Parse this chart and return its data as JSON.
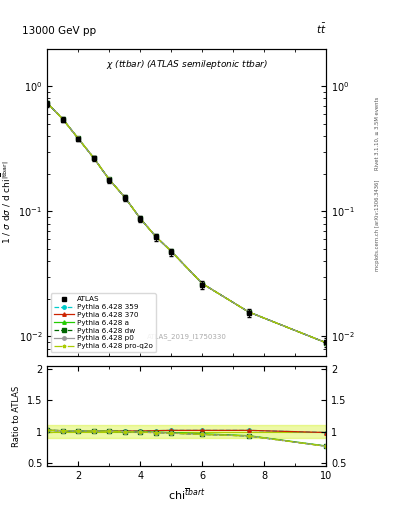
{
  "title_top": "13000 GeV pp",
  "title_right": "tt",
  "plot_title": "χ (ttbar) (ATLAS semileptonic ttbar)",
  "watermark": "ATLAS_2019_I1750330",
  "right_label_top": "Rivet 3.1.10, ≥ 3.5M events",
  "right_label_bot": "mcplots.cern.ch [arXiv:1306.3436]",
  "chi_centers": [
    1.0,
    1.5,
    2.0,
    2.5,
    3.0,
    3.5,
    4.0,
    4.5,
    5.0,
    6.0,
    7.5,
    10.0
  ],
  "ATLAS_y": [
    0.72,
    0.54,
    0.38,
    0.265,
    0.178,
    0.128,
    0.087,
    0.062,
    0.047,
    0.026,
    0.0155,
    0.009
  ],
  "ATLAS_yerr": [
    0.04,
    0.025,
    0.015,
    0.01,
    0.008,
    0.006,
    0.005,
    0.004,
    0.003,
    0.002,
    0.0012,
    0.0008
  ],
  "py359_y": [
    0.735,
    0.548,
    0.383,
    0.268,
    0.18,
    0.13,
    0.088,
    0.063,
    0.048,
    0.0265,
    0.0157,
    0.0089
  ],
  "py370_y": [
    0.735,
    0.548,
    0.383,
    0.268,
    0.18,
    0.13,
    0.088,
    0.063,
    0.048,
    0.0265,
    0.0157,
    0.0089
  ],
  "pya_y": [
    0.735,
    0.548,
    0.383,
    0.268,
    0.18,
    0.13,
    0.088,
    0.063,
    0.048,
    0.0265,
    0.0157,
    0.0089
  ],
  "pydw_y": [
    0.735,
    0.548,
    0.383,
    0.268,
    0.18,
    0.13,
    0.088,
    0.063,
    0.048,
    0.0265,
    0.0157,
    0.0089
  ],
  "pyp0_y": [
    0.735,
    0.548,
    0.383,
    0.268,
    0.18,
    0.13,
    0.088,
    0.063,
    0.048,
    0.0265,
    0.0157,
    0.0089
  ],
  "pyproq2o_y": [
    0.735,
    0.548,
    0.383,
    0.268,
    0.18,
    0.13,
    0.088,
    0.063,
    0.048,
    0.0265,
    0.0157,
    0.0089
  ],
  "ratio_py359": [
    1.02,
    1.015,
    1.01,
    1.01,
    1.01,
    1.01,
    1.01,
    1.015,
    1.02,
    1.02,
    1.02,
    0.985
  ],
  "ratio_py370": [
    1.02,
    1.015,
    1.01,
    1.01,
    1.01,
    1.01,
    1.01,
    1.015,
    1.02,
    1.02,
    1.02,
    0.985
  ],
  "ratio_pya": [
    1.02,
    1.015,
    1.01,
    1.01,
    1.005,
    1.0,
    0.995,
    0.99,
    0.985,
    0.965,
    0.935,
    0.77
  ],
  "ratio_pydw": [
    1.02,
    1.015,
    1.01,
    1.01,
    1.005,
    1.0,
    0.99,
    0.985,
    0.975,
    0.955,
    0.93,
    0.765
  ],
  "ratio_pyp0": [
    1.02,
    1.015,
    1.01,
    1.01,
    1.005,
    1.0,
    0.99,
    0.985,
    0.975,
    0.955,
    0.93,
    0.765
  ],
  "ratio_pyproq2o": [
    1.02,
    1.015,
    1.01,
    1.01,
    1.005,
    1.0,
    0.99,
    0.985,
    0.975,
    0.955,
    0.93,
    0.765
  ],
  "color_py359": "#00cccc",
  "color_py370": "#cc2200",
  "color_pya": "#22cc00",
  "color_pydw": "#006600",
  "color_pyp0": "#999999",
  "color_pyproq2o": "#aacc00",
  "band_color": "#ccee00",
  "band_alpha": 0.35,
  "xlim": [
    1,
    10
  ],
  "ylim_main": [
    0.007,
    2.0
  ],
  "ylim_ratio": [
    0.45,
    2.05
  ],
  "ratio_yticks": [
    0.5,
    1.0,
    1.5,
    2.0
  ],
  "main_yticks_log": [
    0.01,
    0.1,
    1.0
  ],
  "figsize": [
    3.93,
    5.12
  ],
  "dpi": 100
}
